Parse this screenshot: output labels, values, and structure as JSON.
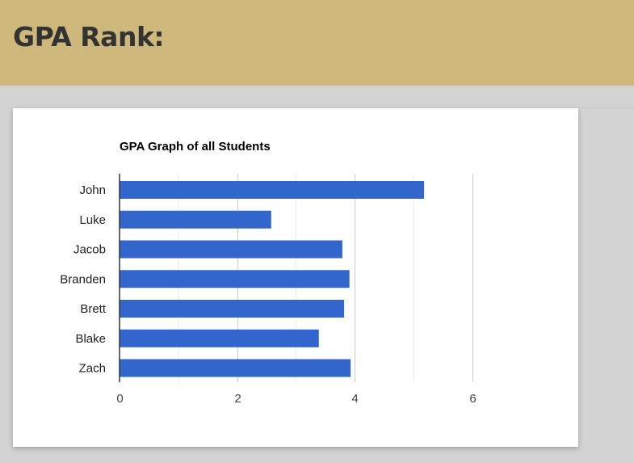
{
  "header": {
    "title": "GPA Rank:"
  },
  "chart_data": {
    "type": "bar",
    "orientation": "horizontal",
    "title": "GPA Graph of all Students",
    "categories": [
      "John",
      "Luke",
      "Jacob",
      "Branden",
      "Brett",
      "Blake",
      "Zach"
    ],
    "values": [
      5.18,
      2.58,
      3.79,
      3.91,
      3.82,
      3.39,
      3.93
    ],
    "xlabel": "",
    "ylabel": "",
    "xlim": [
      0,
      7.2
    ],
    "x_ticks": [
      "0",
      "2",
      "4",
      "6"
    ],
    "minor_gridlines": [
      1,
      3,
      5
    ],
    "grid": true,
    "legend": "none",
    "bar_color": "#3366cc"
  }
}
